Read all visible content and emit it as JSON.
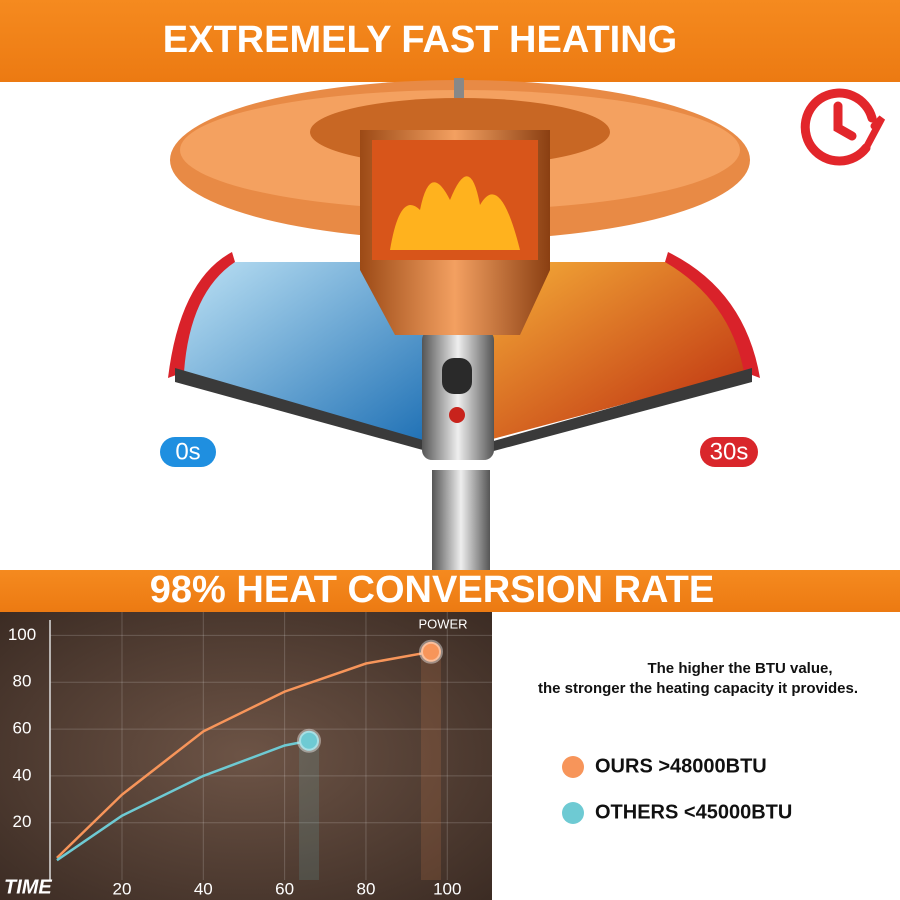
{
  "header": {
    "title": "EXTREMELY FAST HEATING"
  },
  "timing": {
    "start": "0s",
    "end": "30s"
  },
  "section": {
    "title": "98% HEAT CONVERSION RATE"
  },
  "chart": {
    "type": "line",
    "x_label": "TIME",
    "y_label": "POWER",
    "xlim": [
      -10,
      111
    ],
    "ylim": [
      -13,
      110
    ],
    "xticks": [
      20,
      40,
      60,
      80,
      100
    ],
    "yticks": [
      20,
      40,
      60,
      80,
      100
    ],
    "grid": true,
    "series": [
      {
        "name": "OURS >48000BTU",
        "color": "#f7955a",
        "x": [
          4,
          20,
          40,
          60,
          80,
          96
        ],
        "values": [
          5,
          32,
          59,
          76,
          88,
          93
        ]
      },
      {
        "name": "OTHERS <45000BTU",
        "color": "#6ecad3",
        "x": [
          4,
          20,
          40,
          60,
          66
        ],
        "values": [
          4,
          23,
          40,
          53,
          55
        ]
      }
    ]
  },
  "description": [
    "The higher the BTU value,",
    "the stronger the heating capacity it provides."
  ]
}
